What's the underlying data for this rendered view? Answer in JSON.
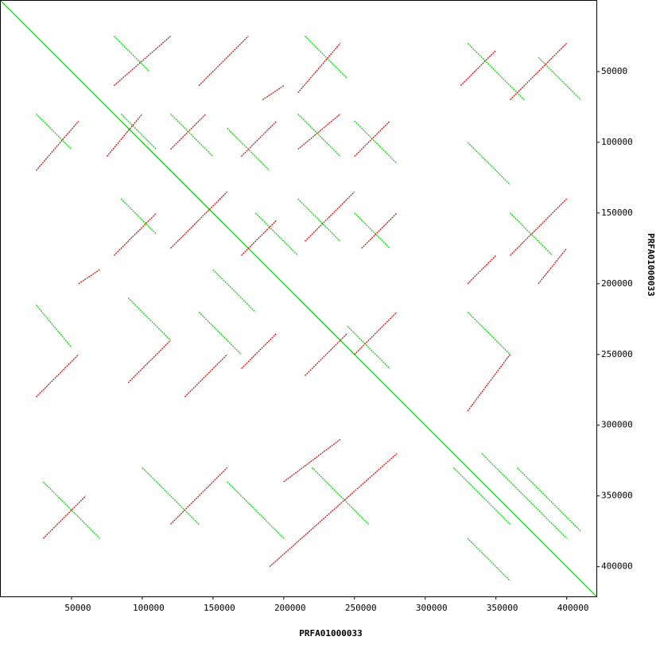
{
  "chart_data": {
    "type": "dotplot",
    "x_label": "PRFA01000033",
    "y_label": "PRFA01000033",
    "xlim": [
      0,
      421000
    ],
    "ylim": [
      0,
      421000
    ],
    "xticks": [
      50000,
      100000,
      150000,
      200000,
      250000,
      300000,
      350000,
      400000
    ],
    "yticks": [
      50000,
      100000,
      150000,
      200000,
      250000,
      300000,
      350000,
      400000
    ],
    "series": [
      {
        "color": "#00cc00",
        "segments": [
          [
            0,
            0,
            421000,
            421000
          ],
          [
            85000,
            80000,
            110000,
            105000
          ],
          [
            120000,
            80000,
            150000,
            110000
          ],
          [
            160000,
            90000,
            190000,
            120000
          ],
          [
            210000,
            80000,
            240000,
            110000
          ],
          [
            250000,
            85000,
            280000,
            115000
          ],
          [
            85000,
            140000,
            110000,
            165000
          ],
          [
            130000,
            130000,
            160000,
            160000
          ],
          [
            210000,
            140000,
            240000,
            170000
          ],
          [
            250000,
            150000,
            275000,
            175000
          ],
          [
            90000,
            210000,
            120000,
            240000
          ],
          [
            140000,
            220000,
            170000,
            250000
          ],
          [
            210000,
            210000,
            235000,
            235000
          ],
          [
            245000,
            230000,
            275000,
            260000
          ],
          [
            80000,
            25000,
            105000,
            50000
          ],
          [
            215000,
            25000,
            245000,
            55000
          ],
          [
            25000,
            80000,
            50000,
            105000
          ],
          [
            25000,
            215000,
            50000,
            245000
          ],
          [
            320000,
            330000,
            360000,
            370000
          ],
          [
            340000,
            320000,
            400000,
            380000
          ],
          [
            365000,
            330000,
            410000,
            375000
          ],
          [
            330000,
            380000,
            360000,
            410000
          ],
          [
            30000,
            340000,
            70000,
            380000
          ],
          [
            100000,
            330000,
            140000,
            370000
          ],
          [
            160000,
            340000,
            200000,
            380000
          ],
          [
            220000,
            330000,
            260000,
            370000
          ],
          [
            330000,
            30000,
            370000,
            70000
          ],
          [
            380000,
            40000,
            410000,
            70000
          ],
          [
            330000,
            100000,
            360000,
            130000
          ],
          [
            360000,
            150000,
            390000,
            180000
          ],
          [
            330000,
            220000,
            360000,
            250000
          ],
          [
            100000,
            100000,
            130000,
            130000
          ],
          [
            180000,
            150000,
            210000,
            180000
          ],
          [
            150000,
            190000,
            180000,
            220000
          ]
        ]
      },
      {
        "color": "#cc0000",
        "segments": [
          [
            75000,
            110000,
            100000,
            80000
          ],
          [
            120000,
            105000,
            145000,
            80000
          ],
          [
            170000,
            110000,
            195000,
            85000
          ],
          [
            210000,
            105000,
            240000,
            80000
          ],
          [
            250000,
            110000,
            275000,
            85000
          ],
          [
            80000,
            180000,
            110000,
            150000
          ],
          [
            120000,
            175000,
            160000,
            135000
          ],
          [
            170000,
            180000,
            195000,
            155000
          ],
          [
            215000,
            170000,
            250000,
            135000
          ],
          [
            255000,
            175000,
            280000,
            150000
          ],
          [
            90000,
            270000,
            120000,
            240000
          ],
          [
            130000,
            280000,
            160000,
            250000
          ],
          [
            170000,
            260000,
            195000,
            235000
          ],
          [
            215000,
            265000,
            245000,
            235000
          ],
          [
            250000,
            250000,
            280000,
            220000
          ],
          [
            80000,
            60000,
            120000,
            25000
          ],
          [
            140000,
            60000,
            175000,
            25000
          ],
          [
            210000,
            65000,
            240000,
            30000
          ],
          [
            25000,
            120000,
            55000,
            85000
          ],
          [
            25000,
            280000,
            55000,
            250000
          ],
          [
            325000,
            60000,
            350000,
            35000
          ],
          [
            360000,
            70000,
            400000,
            30000
          ],
          [
            330000,
            200000,
            350000,
            180000
          ],
          [
            380000,
            200000,
            400000,
            175000
          ],
          [
            330000,
            290000,
            360000,
            250000
          ],
          [
            360000,
            180000,
            400000,
            140000
          ],
          [
            30000,
            380000,
            60000,
            350000
          ],
          [
            190000,
            400000,
            280000,
            320000
          ],
          [
            120000,
            370000,
            160000,
            330000
          ],
          [
            200000,
            340000,
            240000,
            310000
          ],
          [
            55000,
            200000,
            70000,
            190000
          ],
          [
            185000,
            70000,
            200000,
            60000
          ]
        ]
      }
    ]
  }
}
